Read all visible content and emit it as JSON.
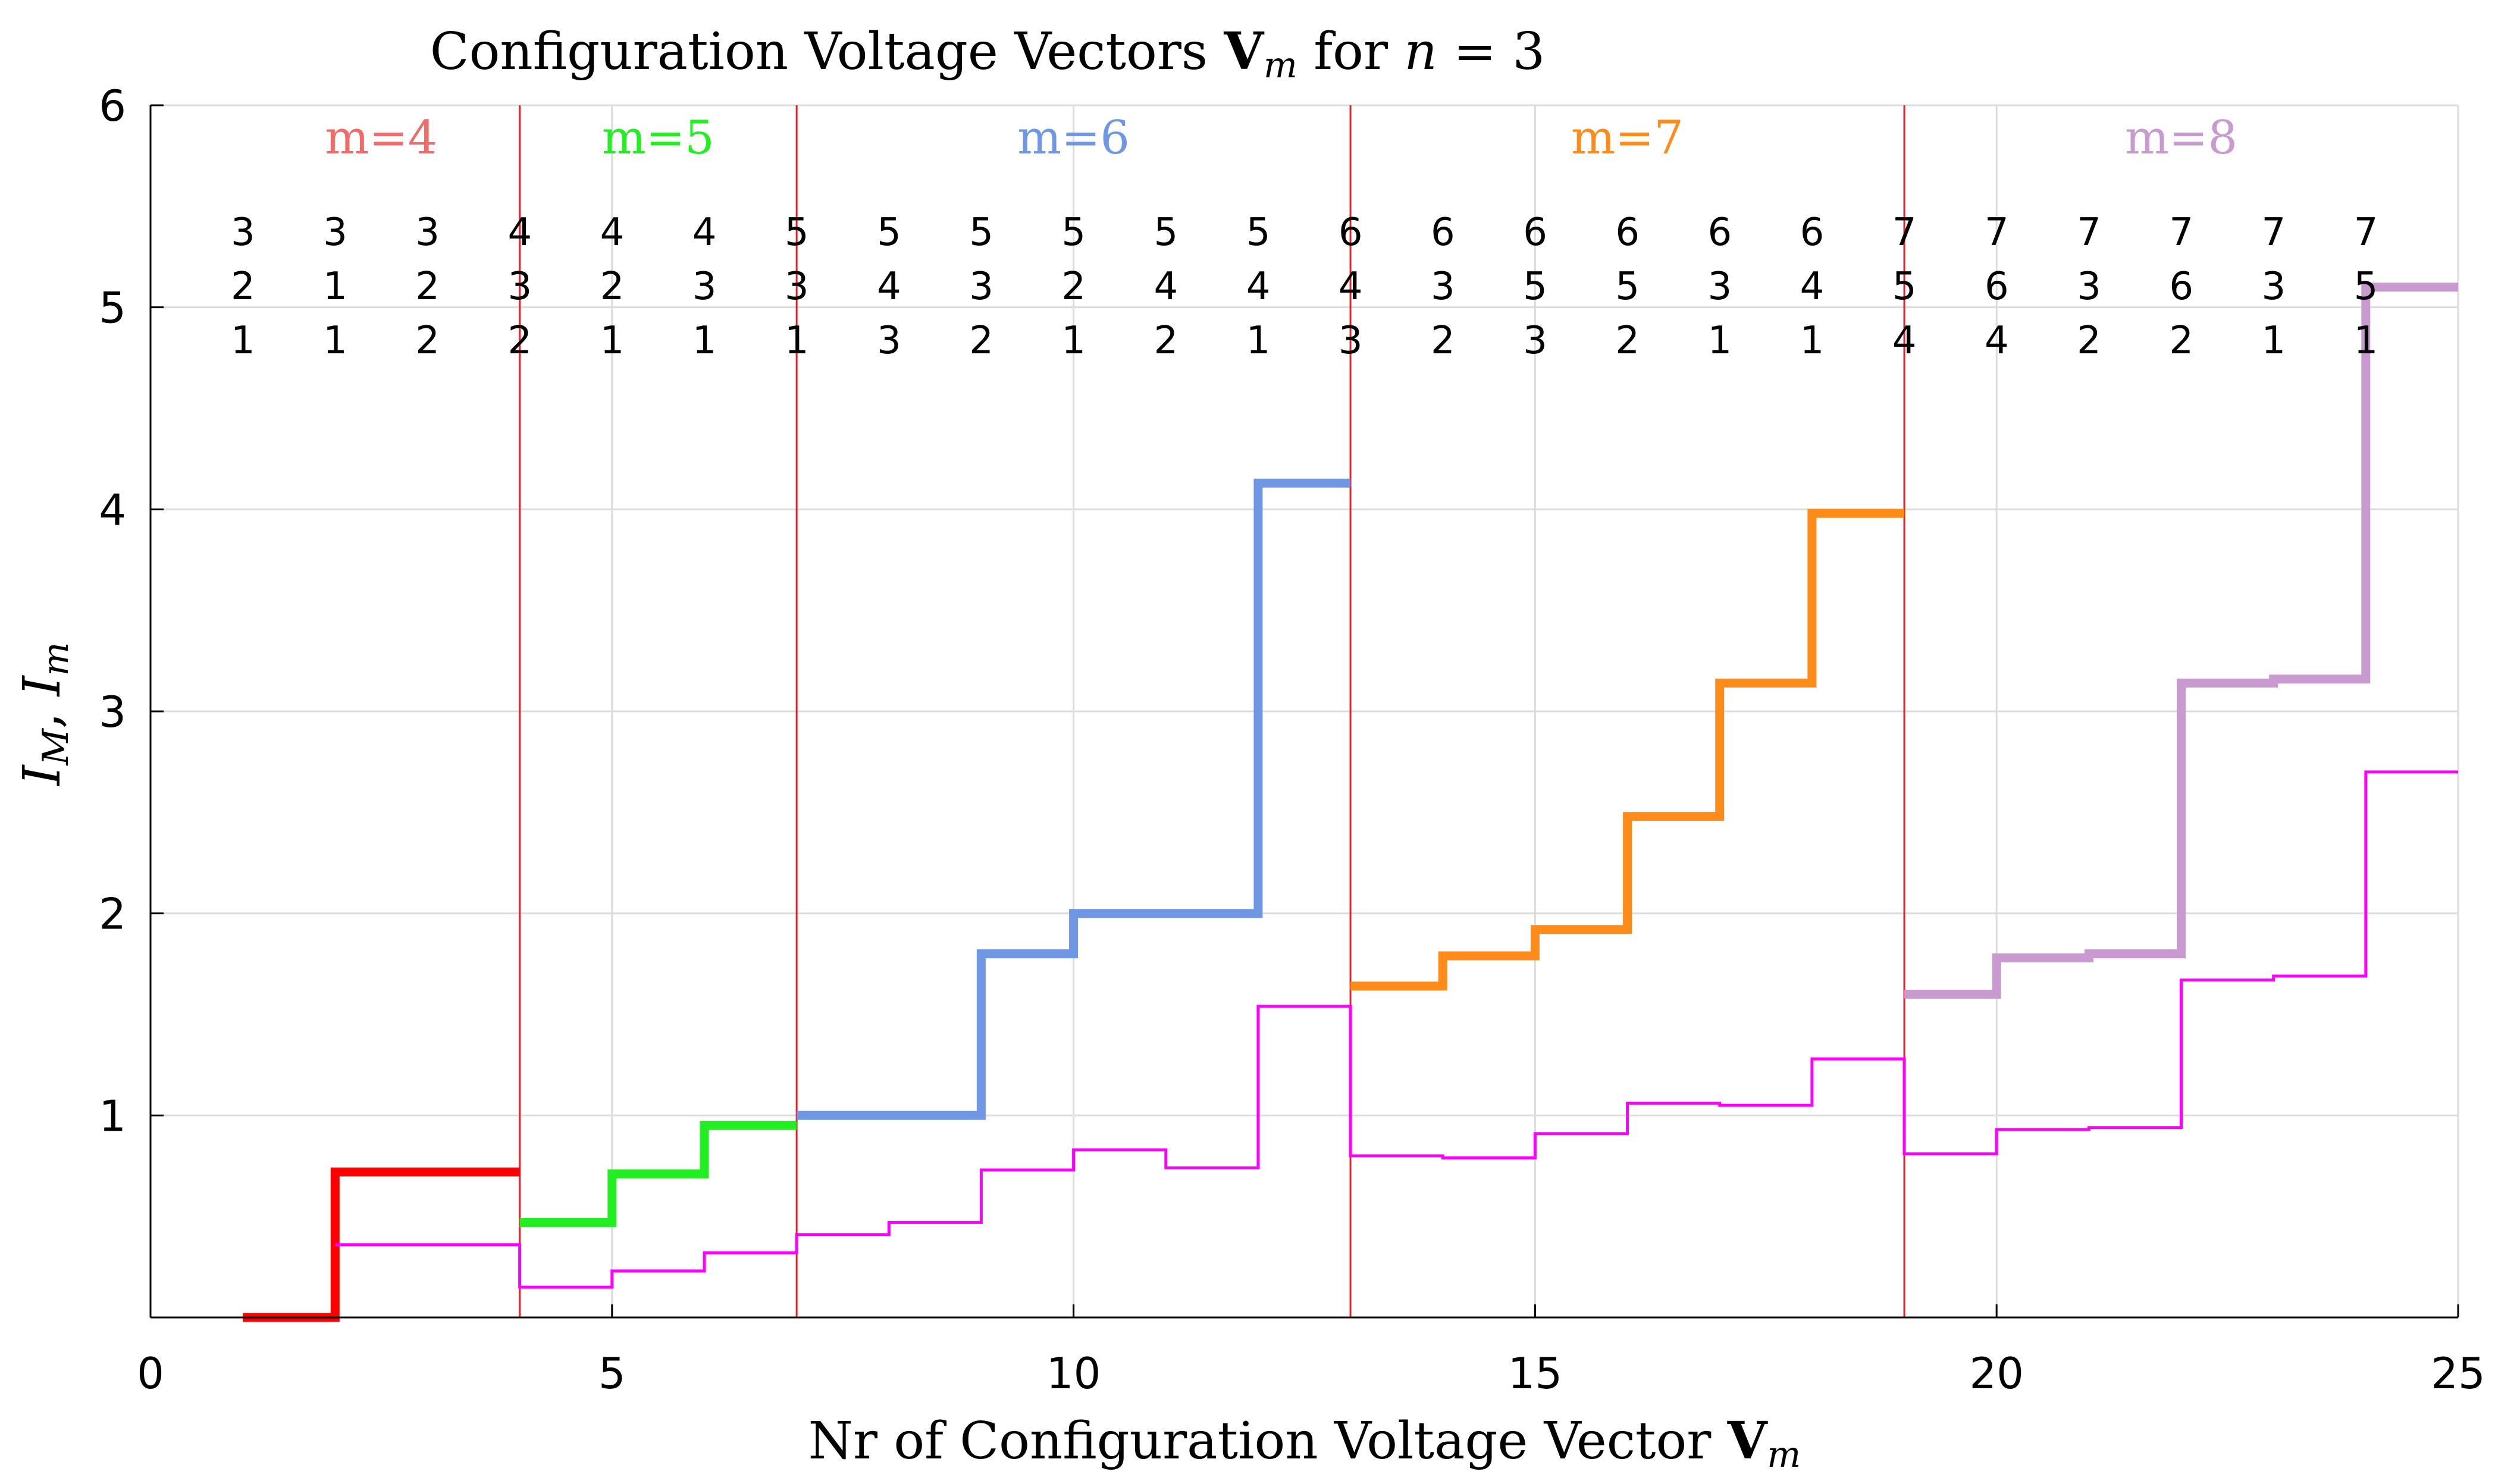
{
  "chart_data": {
    "type": "line",
    "title": {
      "prefix": "Configuration Voltage Vectors ",
      "bold": "V",
      "sub": "m",
      "mid": " for ",
      "var": "n",
      "suffix": " = 3"
    },
    "xlabel": {
      "prefix": "Nr of Configuration Voltage Vector ",
      "bold": "V",
      "sub": "m"
    },
    "ylabel": {
      "a": "I",
      "a_sub": "M",
      "sep": ", ",
      "b": "I",
      "b_sub": "m"
    },
    "xlim": [
      0,
      25
    ],
    "ylim": [
      0,
      6
    ],
    "x_ticks": [
      0,
      5,
      10,
      15,
      20,
      25
    ],
    "y_ticks": [
      1,
      2,
      3,
      4,
      5,
      6
    ],
    "grid": true,
    "separators": [
      4,
      7,
      13,
      19
    ],
    "separator_color": "#e8202a",
    "groups": [
      {
        "label": "m=4",
        "color": "#f26b6b",
        "center": 2.5
      },
      {
        "label": "m=5",
        "color": "#22ee22",
        "center": 5.5
      },
      {
        "label": "m=6",
        "color": "#6f97e3",
        "center": 10
      },
      {
        "label": "m=7",
        "color": "#ff8c1a",
        "center": 16
      },
      {
        "label": "m=8",
        "color": "#c99ad0",
        "center": 22
      }
    ],
    "vectors": {
      "x": [
        2,
        3,
        4,
        5,
        6,
        7,
        8,
        9,
        10,
        11,
        12,
        13,
        14,
        15,
        16,
        17,
        18,
        19,
        20,
        21,
        22,
        23,
        24,
        25
      ],
      "row1": [
        "3",
        "3",
        "3",
        "4",
        "4",
        "4",
        "5",
        "5",
        "5",
        "5",
        "5",
        "5",
        "6",
        "6",
        "6",
        "6",
        "6",
        "6",
        "7",
        "7",
        "7",
        "7",
        "7",
        "7"
      ],
      "row2": [
        "2",
        "1",
        "2",
        "3",
        "2",
        "3",
        "3",
        "4",
        "3",
        "2",
        "4",
        "4",
        "4",
        "3",
        "5",
        "5",
        "3",
        "4",
        "5",
        "6",
        "3",
        "6",
        "3",
        "5"
      ],
      "row3": [
        "1",
        "1",
        "2",
        "2",
        "1",
        "1",
        "1",
        "3",
        "2",
        "1",
        "2",
        "1",
        "3",
        "2",
        "3",
        "2",
        "1",
        "1",
        "4",
        "4",
        "2",
        "2",
        "1",
        "1"
      ]
    },
    "series": [
      {
        "name": "I_M m=4",
        "color": "#ff0000",
        "width": 3,
        "x": [
          1,
          2,
          2,
          4
        ],
        "y": [
          0,
          0,
          0.72,
          0.72
        ]
      },
      {
        "name": "I_M m=5",
        "color": "#22ee22",
        "width": 3,
        "x": [
          4,
          5,
          5,
          6,
          6,
          7
        ],
        "y": [
          0.47,
          0.47,
          0.71,
          0.71,
          0.95,
          0.95
        ]
      },
      {
        "name": "I_M m=6",
        "color": "#6f97e3",
        "width": 3,
        "x": [
          7,
          9,
          9,
          10,
          10,
          12,
          12,
          13
        ],
        "y": [
          1.0,
          1.0,
          1.8,
          1.8,
          2.0,
          2.0,
          4.13,
          4.13
        ]
      },
      {
        "name": "I_M m=7",
        "color": "#ff8c1a",
        "width": 3,
        "x": [
          13,
          14,
          14,
          15,
          15,
          16,
          16,
          17,
          17,
          18,
          18,
          19
        ],
        "y": [
          1.64,
          1.64,
          1.79,
          1.79,
          1.92,
          1.92,
          2.48,
          2.48,
          3.14,
          3.14,
          3.98,
          3.98
        ]
      },
      {
        "name": "I_M m=8",
        "color": "#c99ad0",
        "width": 3,
        "x": [
          19,
          20,
          20,
          21,
          21,
          22,
          22,
          23,
          23,
          24,
          24,
          25
        ],
        "y": [
          1.6,
          1.6,
          1.78,
          1.78,
          1.8,
          1.8,
          3.14,
          3.14,
          3.16,
          3.16,
          5.1,
          5.1
        ]
      },
      {
        "name": "I_m",
        "color": "#ff00ff",
        "width": 1,
        "x": [
          2,
          4,
          4,
          5,
          5,
          6,
          6,
          7,
          7,
          8,
          8,
          9,
          9,
          10,
          10,
          11,
          11,
          12,
          12,
          13,
          13,
          14,
          14,
          15,
          15,
          16,
          16,
          17,
          17,
          18,
          18,
          19,
          19,
          20,
          20,
          21,
          21,
          22,
          22,
          23,
          23,
          24,
          24,
          25
        ],
        "y": [
          0.36,
          0.36,
          0.15,
          0.15,
          0.23,
          0.23,
          0.32,
          0.32,
          0.41,
          0.41,
          0.47,
          0.47,
          0.73,
          0.73,
          0.83,
          0.83,
          0.74,
          0.74,
          1.54,
          1.54,
          0.8,
          0.8,
          0.79,
          0.79,
          0.91,
          0.91,
          1.06,
          1.06,
          1.05,
          1.05,
          1.28,
          1.28,
          0.81,
          0.81,
          0.93,
          0.93,
          0.94,
          0.94,
          1.67,
          1.67,
          1.69,
          1.69,
          2.7,
          2.7
        ]
      }
    ]
  }
}
